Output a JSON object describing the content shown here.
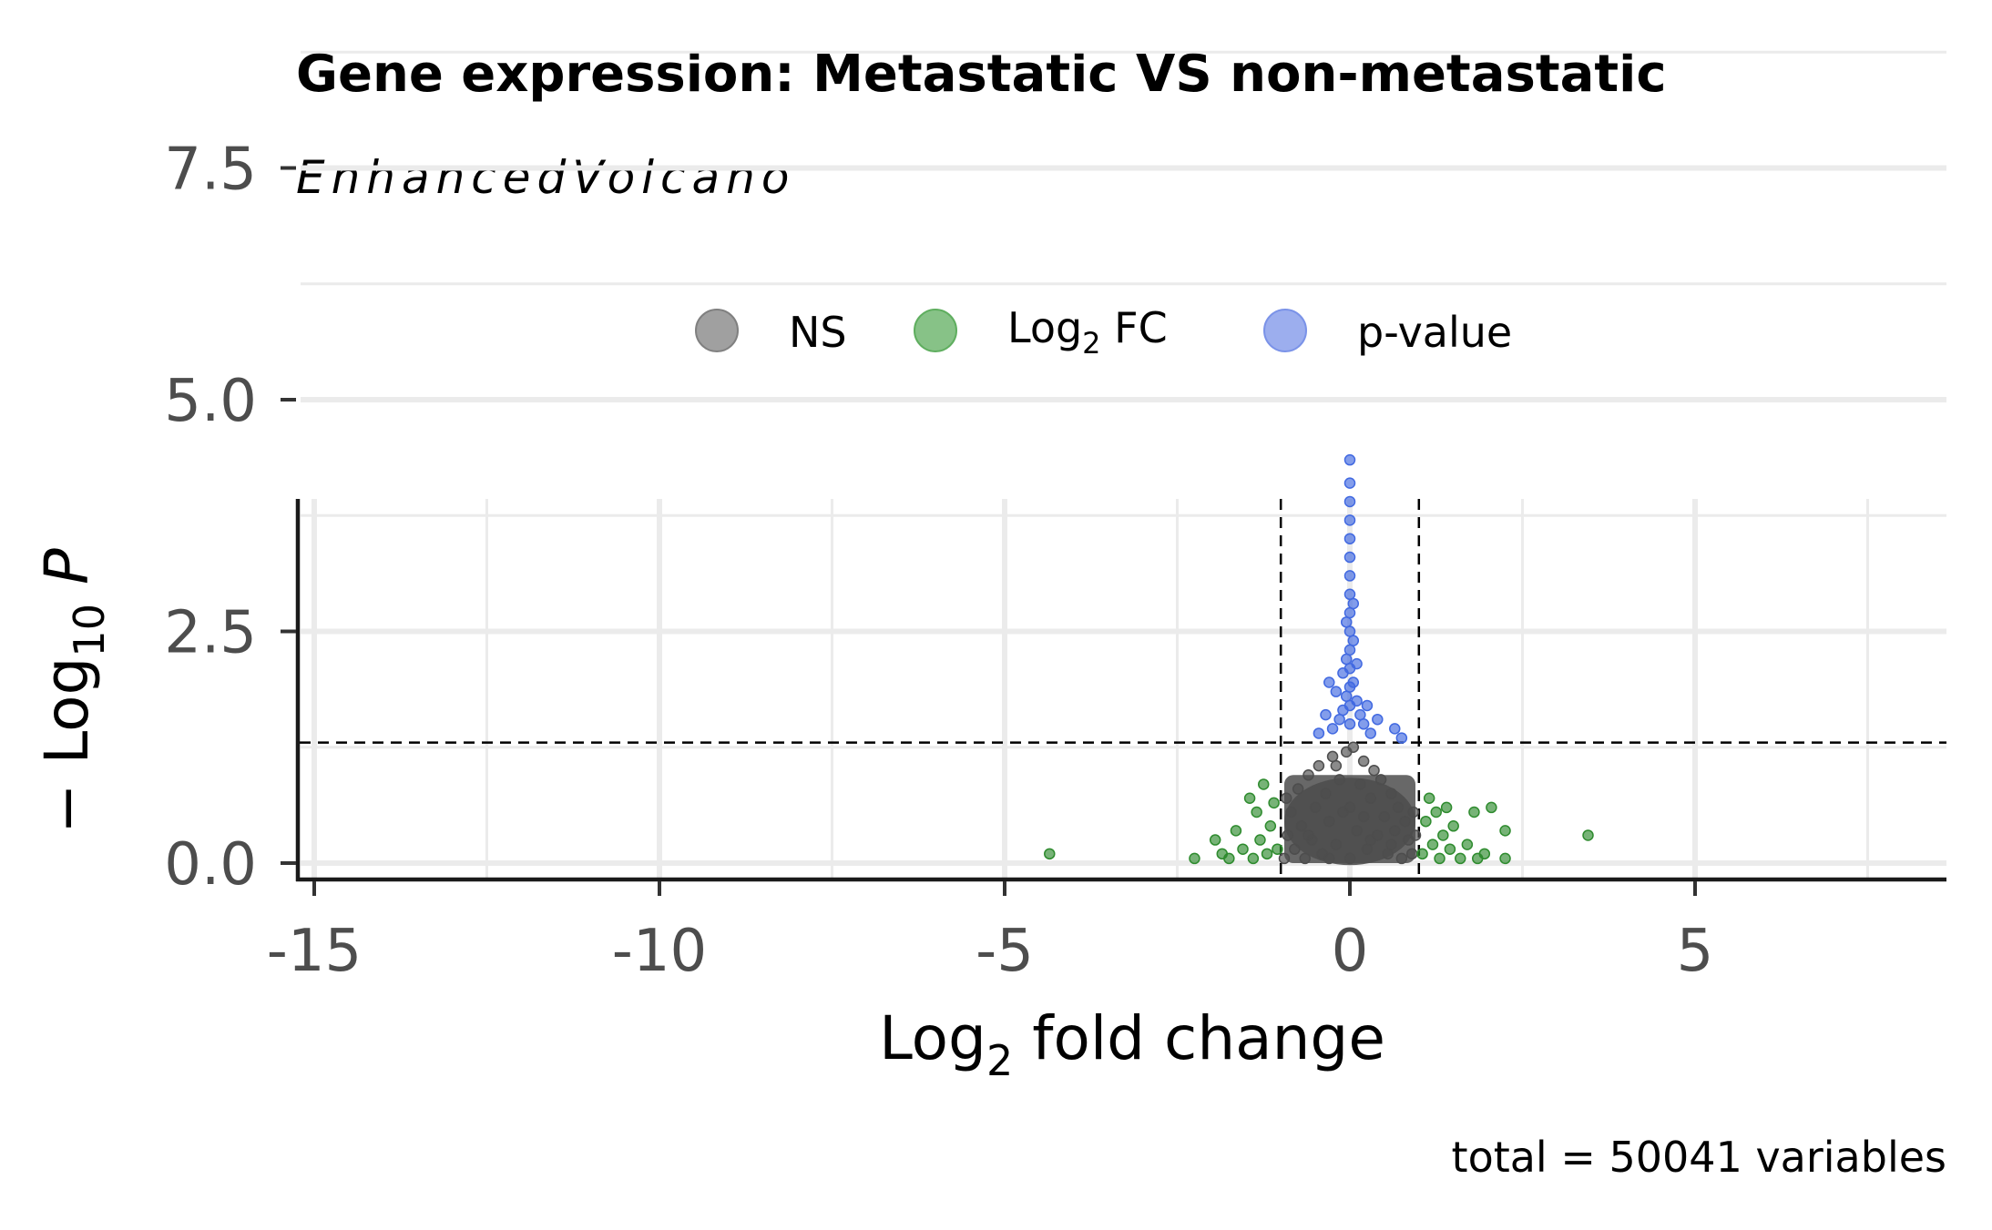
{
  "chart_data": {
    "type": "scatter",
    "title": "Gene expression: Metastatic VS non-metastatic",
    "subtitle": "EnhancedVolcano",
    "xlabel": "Log2 fold change",
    "ylabel": "− Log10 P",
    "caption": "total = 50041 variables",
    "x_ticks": [
      "-15",
      "-10",
      "-5",
      "0",
      "5"
    ],
    "y_ticks": [
      "0.0",
      "2.5",
      "5.0",
      "7.5"
    ],
    "xlim": [
      -15.2,
      8.5
    ],
    "ylim": [
      -0.5,
      9.7
    ],
    "grid": true,
    "legend_position": "top",
    "fc_cutoff": 1.0,
    "p_cutoff_log10": 1.3,
    "legend": [
      {
        "label": "NS",
        "color": "#808080"
      },
      {
        "label": "Log₂ FC",
        "color": "#5fae5f"
      },
      {
        "label": "p-value",
        "color": "#7b93e8"
      }
    ],
    "series": [
      {
        "name": "NS",
        "color": "#4d4d4d",
        "points": [
          [
            -0.95,
            0.05
          ],
          [
            -0.9,
            0.3
          ],
          [
            -0.85,
            0.55
          ],
          [
            -0.8,
            0.15
          ],
          [
            -0.75,
            0.8
          ],
          [
            -0.7,
            0.4
          ],
          [
            -0.65,
            0.05
          ],
          [
            -0.6,
            0.95
          ],
          [
            -0.55,
            0.25
          ],
          [
            -0.5,
            0.6
          ],
          [
            -0.45,
            1.05
          ],
          [
            -0.4,
            0.1
          ],
          [
            -0.35,
            0.75
          ],
          [
            -0.3,
            0.45
          ],
          [
            -0.25,
            1.15
          ],
          [
            -0.2,
            0.2
          ],
          [
            -0.15,
            0.9
          ],
          [
            -0.1,
            0.55
          ],
          [
            -0.05,
            1.2
          ],
          [
            0.0,
            0.05
          ],
          [
            0.0,
            0.6
          ],
          [
            0.05,
            1.25
          ],
          [
            0.1,
            0.35
          ],
          [
            0.15,
            0.85
          ],
          [
            0.2,
            1.1
          ],
          [
            0.25,
            0.15
          ],
          [
            0.3,
            0.7
          ],
          [
            0.35,
            1.0
          ],
          [
            0.4,
            0.3
          ],
          [
            0.45,
            0.9
          ],
          [
            0.5,
            0.5
          ],
          [
            0.55,
            0.1
          ],
          [
            0.6,
            0.75
          ],
          [
            0.65,
            0.35
          ],
          [
            0.7,
            0.6
          ],
          [
            0.75,
            0.05
          ],
          [
            0.8,
            0.45
          ],
          [
            0.85,
            0.25
          ],
          [
            0.9,
            0.1
          ],
          [
            0.95,
            0.3
          ],
          [
            -0.92,
            0.7
          ],
          [
            -0.6,
            0.3
          ],
          [
            -0.3,
            0.05
          ],
          [
            0.3,
            0.25
          ],
          [
            0.6,
            0.2
          ],
          [
            0.92,
            0.55
          ],
          [
            -0.2,
            1.05
          ],
          [
            0.2,
            0.5
          ]
        ]
      },
      {
        "name": "Log₂ FC",
        "color": "#2e8b2e",
        "points": [
          [
            -4.35,
            0.1
          ],
          [
            -2.25,
            0.05
          ],
          [
            -1.95,
            0.25
          ],
          [
            -1.85,
            0.1
          ],
          [
            -1.75,
            0.05
          ],
          [
            -1.65,
            0.35
          ],
          [
            -1.55,
            0.15
          ],
          [
            -1.45,
            0.7
          ],
          [
            -1.4,
            0.05
          ],
          [
            -1.35,
            0.55
          ],
          [
            -1.3,
            0.25
          ],
          [
            -1.25,
            0.85
          ],
          [
            -1.2,
            0.1
          ],
          [
            -1.15,
            0.4
          ],
          [
            -1.1,
            0.65
          ],
          [
            -1.05,
            0.15
          ],
          [
            1.05,
            0.1
          ],
          [
            1.1,
            0.45
          ],
          [
            1.15,
            0.7
          ],
          [
            1.2,
            0.2
          ],
          [
            1.25,
            0.55
          ],
          [
            1.3,
            0.05
          ],
          [
            1.35,
            0.3
          ],
          [
            1.4,
            0.6
          ],
          [
            1.45,
            0.15
          ],
          [
            1.5,
            0.4
          ],
          [
            1.6,
            0.05
          ],
          [
            1.7,
            0.2
          ],
          [
            1.8,
            0.55
          ],
          [
            1.85,
            0.05
          ],
          [
            1.95,
            0.1
          ],
          [
            2.05,
            0.6
          ],
          [
            2.25,
            0.05
          ],
          [
            2.25,
            0.35
          ],
          [
            3.45,
            0.3
          ]
        ]
      },
      {
        "name": "p-value",
        "color": "#4169e1",
        "points": [
          [
            0.0,
            4.35
          ],
          [
            0.0,
            4.1
          ],
          [
            0.0,
            3.9
          ],
          [
            0.0,
            3.7
          ],
          [
            0.0,
            3.5
          ],
          [
            0.0,
            3.3
          ],
          [
            0.0,
            3.1
          ],
          [
            0.0,
            2.9
          ],
          [
            0.0,
            2.7
          ],
          [
            0.0,
            2.5
          ],
          [
            0.0,
            2.3
          ],
          [
            0.0,
            2.1
          ],
          [
            0.0,
            1.9
          ],
          [
            0.0,
            1.7
          ],
          [
            0.0,
            1.5
          ],
          [
            -0.05,
            2.2
          ],
          [
            0.05,
            2.4
          ],
          [
            -0.05,
            1.8
          ],
          [
            0.05,
            1.95
          ],
          [
            -0.1,
            1.65
          ],
          [
            0.1,
            1.75
          ],
          [
            -0.15,
            1.55
          ],
          [
            0.15,
            1.6
          ],
          [
            -0.2,
            1.85
          ],
          [
            0.2,
            1.5
          ],
          [
            -0.25,
            1.45
          ],
          [
            -0.35,
            1.6
          ],
          [
            -0.3,
            1.95
          ],
          [
            0.25,
            1.7
          ],
          [
            0.3,
            1.4
          ],
          [
            -0.1,
            2.05
          ],
          [
            0.1,
            2.15
          ],
          [
            0.65,
            1.45
          ],
          [
            0.75,
            1.35
          ],
          [
            -0.45,
            1.4
          ],
          [
            0.4,
            1.55
          ],
          [
            -0.05,
            2.6
          ],
          [
            0.05,
            2.8
          ]
        ]
      }
    ]
  }
}
